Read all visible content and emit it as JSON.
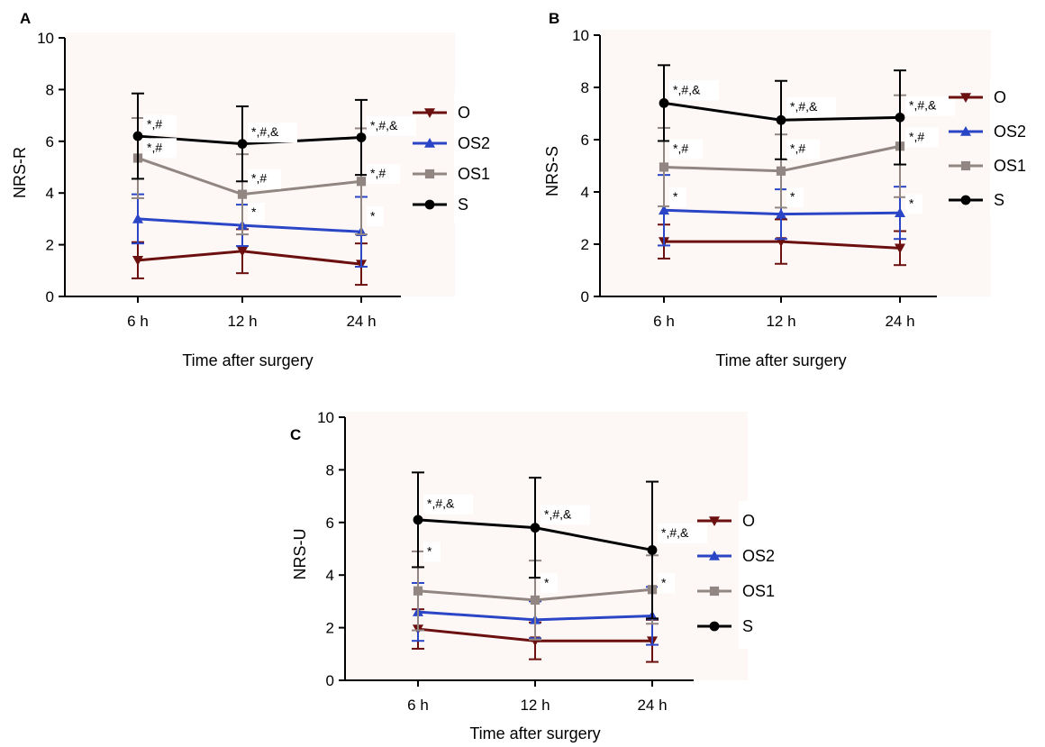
{
  "colors": {
    "O": "#6b0f0f",
    "OS2": "#2b45c7",
    "OS1": "#918682",
    "S": "#000000"
  },
  "chart_data": [
    {
      "panel": "A",
      "type": "line",
      "categories": [
        "6 h",
        "12 h",
        "24 h"
      ],
      "xlabel": "Time after surgery",
      "ylabel": "NRS-R",
      "ylim": [
        0,
        10
      ],
      "yticks": [
        "0",
        "2",
        "4",
        "6",
        "8",
        "10"
      ],
      "legend_position": "right",
      "series": [
        {
          "name": "O",
          "marker": "triangle-down",
          "values": [
            1.4,
            1.75,
            1.25
          ],
          "errors": [
            0.7,
            0.85,
            0.8
          ]
        },
        {
          "name": "OS2",
          "marker": "triangle-up",
          "values": [
            3.0,
            2.75,
            2.5
          ],
          "errors": [
            0.95,
            0.8,
            1.35
          ]
        },
        {
          "name": "OS1",
          "marker": "square",
          "values": [
            5.35,
            3.95,
            4.45
          ],
          "errors": [
            1.55,
            1.55,
            2.05
          ]
        },
        {
          "name": "S",
          "marker": "circle",
          "values": [
            6.2,
            5.9,
            6.15
          ],
          "errors": [
            1.65,
            1.45,
            1.45
          ]
        }
      ],
      "annotations": [
        {
          "text": "*,#",
          "x": 0,
          "y": 6.5
        },
        {
          "text": "*,#,&",
          "x": 1,
          "y": 6.2
        },
        {
          "text": "*,#,&",
          "x": 2,
          "y": 6.45
        },
        {
          "text": "*,#",
          "x": 0,
          "y": 5.6
        },
        {
          "text": "*,#",
          "x": 1,
          "y": 4.4
        },
        {
          "text": "*,#",
          "x": 2,
          "y": 4.6
        },
        {
          "text": "*",
          "x": 1,
          "y": 3.1
        },
        {
          "text": "*",
          "x": 2,
          "y": 2.95
        }
      ]
    },
    {
      "panel": "B",
      "type": "line",
      "categories": [
        "6 h",
        "12 h",
        "24 h"
      ],
      "xlabel": "Time after surgery",
      "ylabel": "NRS-S",
      "ylim": [
        0,
        10
      ],
      "yticks": [
        "0",
        "2",
        "4",
        "6",
        "8",
        "10"
      ],
      "legend_position": "right",
      "series": [
        {
          "name": "O",
          "marker": "triangle-down",
          "values": [
            2.1,
            2.1,
            1.85
          ],
          "errors": [
            0.65,
            0.85,
            0.65
          ]
        },
        {
          "name": "OS2",
          "marker": "triangle-up",
          "values": [
            3.3,
            3.15,
            3.2
          ],
          "errors": [
            1.35,
            0.95,
            1.0
          ]
        },
        {
          "name": "OS1",
          "marker": "square",
          "values": [
            4.95,
            4.8,
            5.75
          ],
          "errors": [
            1.5,
            1.4,
            1.95
          ]
        },
        {
          "name": "S",
          "marker": "circle",
          "values": [
            7.4,
            6.75,
            6.85
          ],
          "errors": [
            1.45,
            1.5,
            1.8
          ]
        }
      ],
      "annotations": [
        {
          "text": "*,#,&",
          "x": 0,
          "y": 7.75
        },
        {
          "text": "*,#,&",
          "x": 1,
          "y": 7.1
        },
        {
          "text": "*,#,&",
          "x": 2,
          "y": 7.15
        },
        {
          "text": "*,#",
          "x": 0,
          "y": 5.5
        },
        {
          "text": "*,#",
          "x": 1,
          "y": 5.5
        },
        {
          "text": "*,#",
          "x": 2,
          "y": 5.95
        },
        {
          "text": "*",
          "x": 0,
          "y": 3.65
        },
        {
          "text": "*",
          "x": 1,
          "y": 3.65
        },
        {
          "text": "*",
          "x": 2,
          "y": 3.4
        }
      ]
    },
    {
      "panel": "C",
      "type": "line",
      "categories": [
        "6 h",
        "12 h",
        "24 h"
      ],
      "xlabel": "Time after surgery",
      "ylabel": "NRS-U",
      "ylim": [
        0,
        10
      ],
      "yticks": [
        "0",
        "2",
        "4",
        "6",
        "8",
        "10"
      ],
      "legend_position": "right",
      "series": [
        {
          "name": "O",
          "marker": "triangle-down",
          "values": [
            1.95,
            1.5,
            1.5
          ],
          "errors": [
            0.75,
            0.7,
            0.8
          ]
        },
        {
          "name": "OS2",
          "marker": "triangle-up",
          "values": [
            2.6,
            2.3,
            2.45
          ],
          "errors": [
            1.1,
            0.7,
            1.1
          ]
        },
        {
          "name": "OS1",
          "marker": "square",
          "values": [
            3.4,
            3.05,
            3.45
          ],
          "errors": [
            1.5,
            1.5,
            1.3
          ]
        },
        {
          "name": "S",
          "marker": "circle",
          "values": [
            6.1,
            5.8,
            4.95
          ],
          "errors": [
            1.8,
            1.9,
            2.6
          ]
        }
      ],
      "annotations": [
        {
          "text": "*,#,&",
          "x": 0,
          "y": 6.55
        },
        {
          "text": "*,#,&",
          "x": 1,
          "y": 6.15
        },
        {
          "text": "*,#,&",
          "x": 2,
          "y": 5.45
        },
        {
          "text": "*",
          "x": 0,
          "y": 4.75
        },
        {
          "text": "*",
          "x": 1,
          "y": 3.55
        },
        {
          "text": "*",
          "x": 2,
          "y": 3.55
        }
      ]
    }
  ]
}
